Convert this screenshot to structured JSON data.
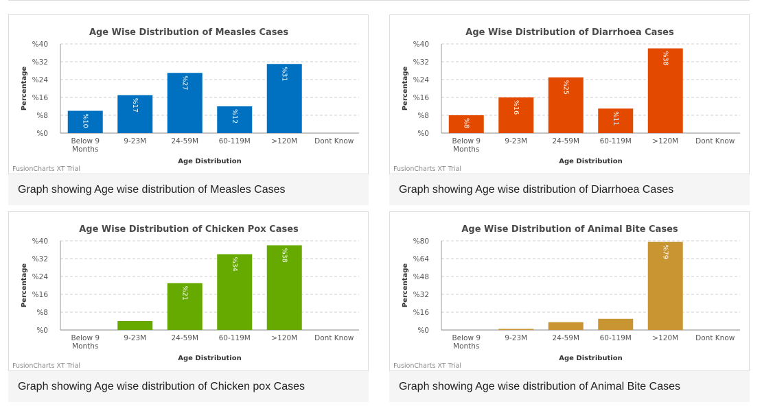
{
  "charts": [
    {
      "caption": "Graph showing Age wise distribution of Measles Cases",
      "chart_data": {
        "type": "bar",
        "title": "Age Wise Distribution of Measles Cases",
        "xlabel": "Age Distribution",
        "ylabel": "Percentage",
        "categories": [
          [
            "Below 9",
            "Months"
          ],
          [
            "9-23M"
          ],
          [
            "24-59M"
          ],
          [
            "60-119M"
          ],
          [
            ">120M"
          ],
          [
            "Dont Know"
          ]
        ],
        "values": [
          10,
          17,
          27,
          12,
          31,
          0
        ],
        "value_labels": [
          "%10",
          "%17",
          "%27",
          "%12",
          "%31",
          ""
        ],
        "ylim": [
          0,
          40
        ],
        "yticks": [
          "%0",
          "%8",
          "%16",
          "%24",
          "%32",
          "%40"
        ],
        "color": "#0070c0",
        "watermark": "FusionCharts XT Trial"
      }
    },
    {
      "caption": "Graph showing Age wise distribution of Diarrhoea Cases",
      "chart_data": {
        "type": "bar",
        "title": "Age Wise Distribution of Diarrhoea Cases",
        "xlabel": "Age Distribution",
        "ylabel": "Percentage",
        "categories": [
          [
            "Below 9",
            "Months"
          ],
          [
            "9-23M"
          ],
          [
            "24-59M"
          ],
          [
            "60-119M"
          ],
          [
            ">120M"
          ],
          [
            "Dont Know"
          ]
        ],
        "values": [
          8,
          16,
          25,
          11,
          38,
          0
        ],
        "value_labels": [
          "%8",
          "%16",
          "%25",
          "%11",
          "%38",
          ""
        ],
        "ylim": [
          0,
          40
        ],
        "yticks": [
          "%0",
          "%8",
          "%16",
          "%24",
          "%32",
          "%40"
        ],
        "color": "#e34a00",
        "watermark": "FusionCharts XT Trial"
      }
    },
    {
      "caption": "Graph showing Age wise distribution of Chicken pox Cases",
      "chart_data": {
        "type": "bar",
        "title": "Age Wise Distribution of Chicken Pox Cases",
        "xlabel": "Age Distribution",
        "ylabel": "Percentage",
        "categories": [
          [
            "Below 9",
            "Months"
          ],
          [
            "9-23M"
          ],
          [
            "24-59M"
          ],
          [
            "60-119M"
          ],
          [
            ">120M"
          ],
          [
            "Dont Know"
          ]
        ],
        "values": [
          0,
          4,
          21,
          34,
          38,
          0
        ],
        "value_labels": [
          "",
          "",
          "%21",
          "%34",
          "%38",
          ""
        ],
        "ylim": [
          0,
          40
        ],
        "yticks": [
          "%0",
          "%8",
          "%16",
          "%24",
          "%32",
          "%40"
        ],
        "color": "#66aa00",
        "watermark": "FusionCharts XT Trial"
      }
    },
    {
      "caption": "Graph showing Age wise distribution of Animal Bite Cases",
      "chart_data": {
        "type": "bar",
        "title": "Age Wise Distribution of Animal Bite Cases",
        "xlabel": "Age Distribution",
        "ylabel": "Percentage",
        "categories": [
          [
            "Below 9",
            "Months"
          ],
          [
            "9-23M"
          ],
          [
            "24-59M"
          ],
          [
            "60-119M"
          ],
          [
            ">120M"
          ],
          [
            "Dont Know"
          ]
        ],
        "values": [
          0,
          1,
          7,
          10,
          79,
          0
        ],
        "value_labels": [
          "",
          "",
          "",
          "",
          "%79",
          ""
        ],
        "ylim": [
          0,
          80
        ],
        "yticks": [
          "%0",
          "%16",
          "%32",
          "%48",
          "%64",
          "%80"
        ],
        "color": "#c99532",
        "watermark": "FusionCharts XT Trial"
      }
    }
  ]
}
